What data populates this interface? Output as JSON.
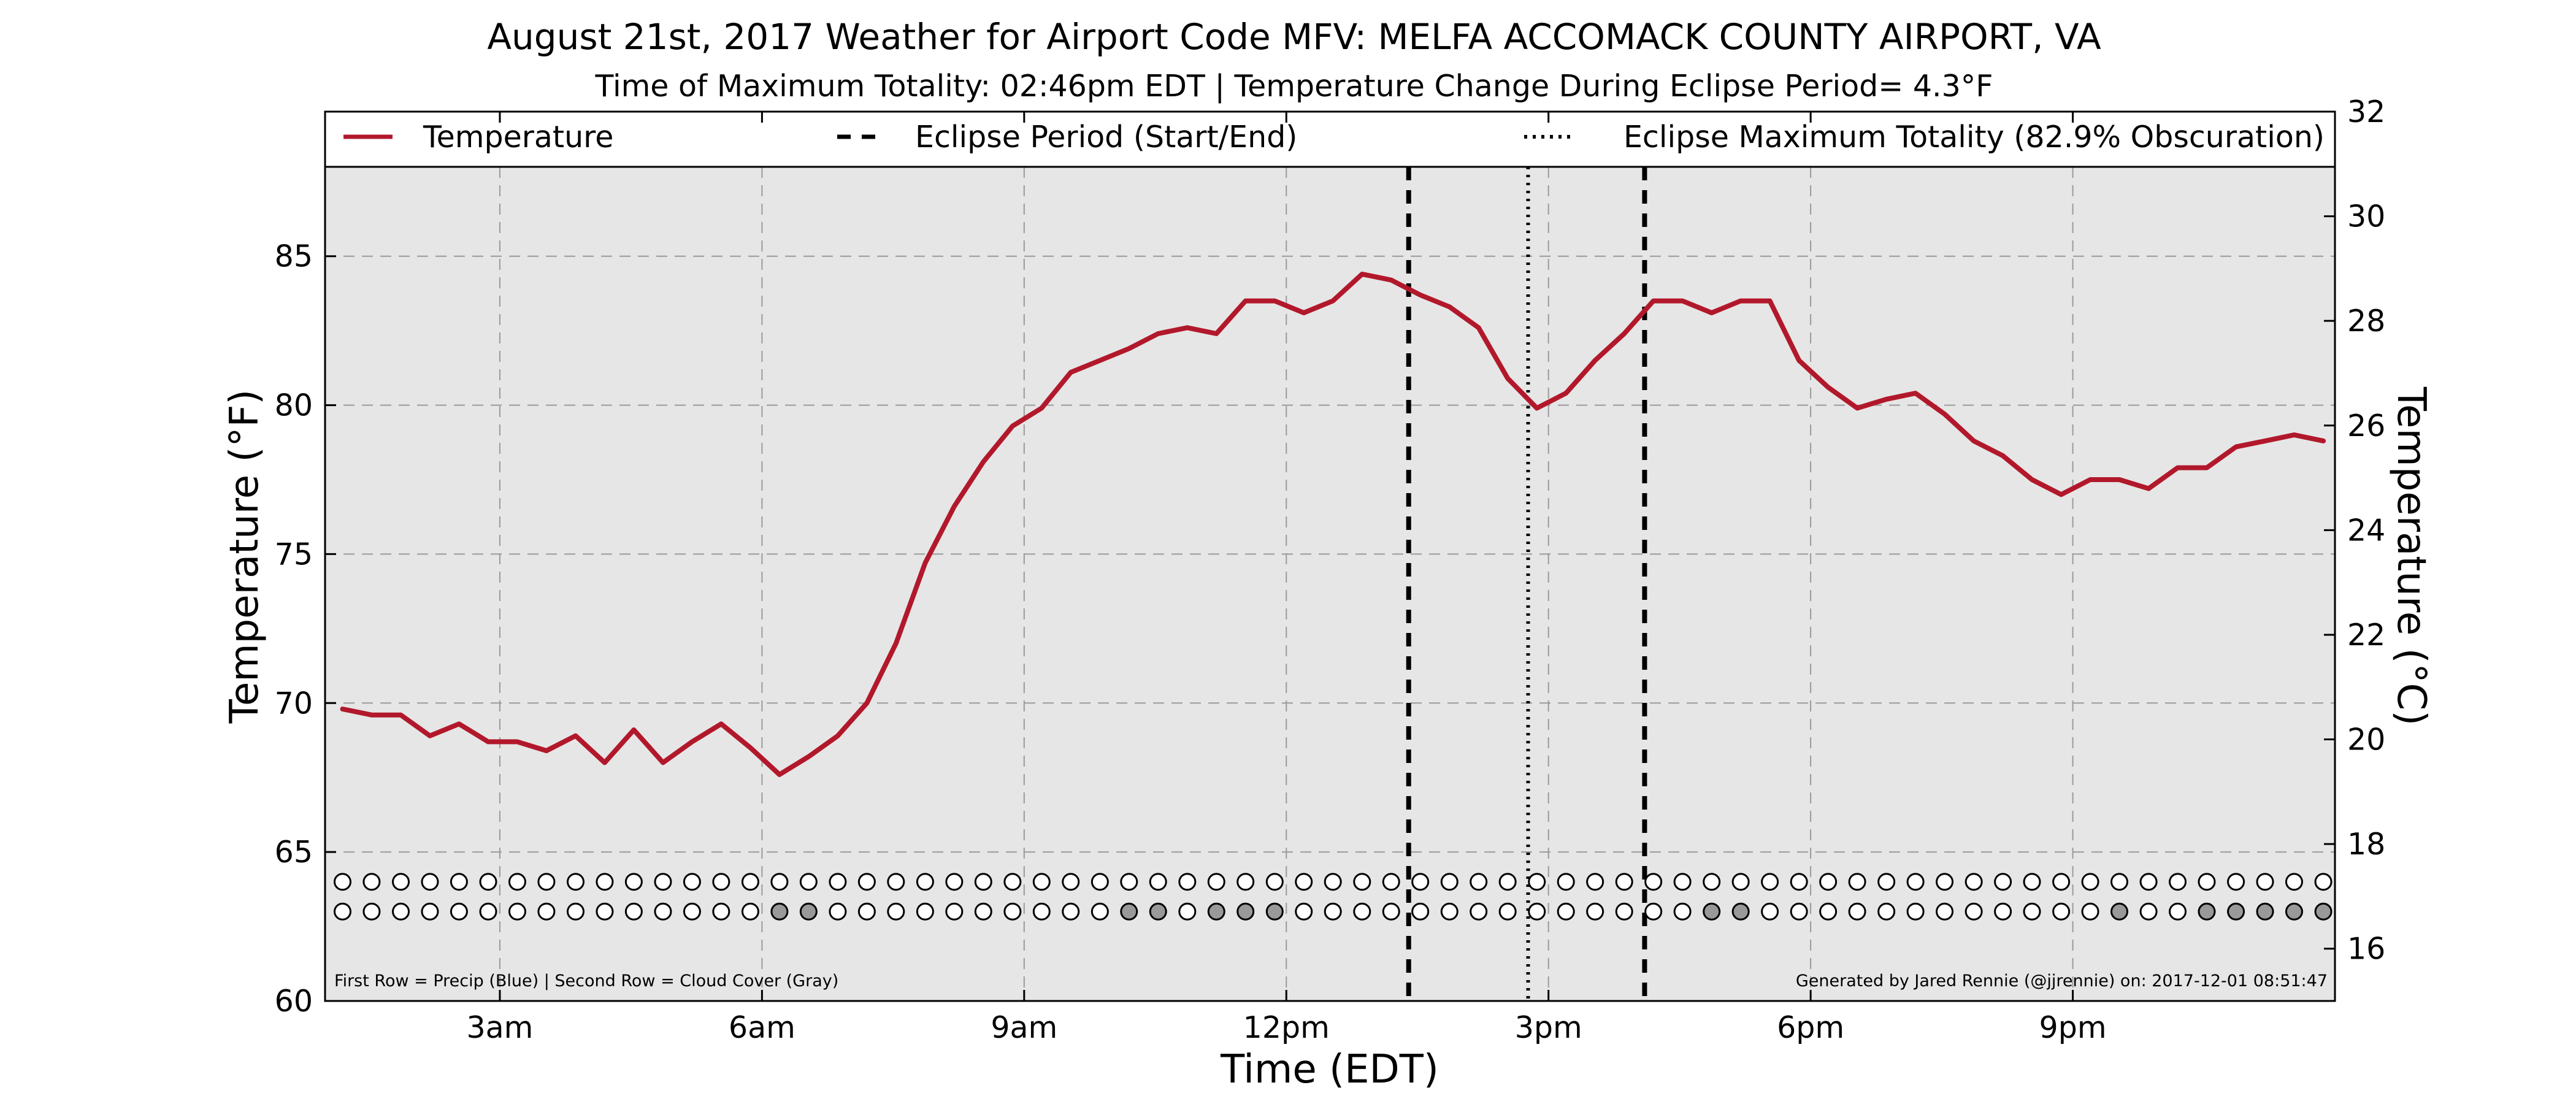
{
  "chart_data": {
    "type": "line",
    "title": "August 21st, 2017 Weather for Airport Code MFV: MELFA ACCOMACK COUNTY AIRPORT, VA",
    "subtitle": "Time of Maximum Totality: 02:46pm EDT | Temperature Change During Eclipse Period= 4.3°F",
    "xlabel": "Time (EDT)",
    "ylabel": "Temperature (°F)",
    "ylabel_right": "Temperature (°C)",
    "xlim": [
      1.0,
      24.0
    ],
    "ylim": [
      60,
      88
    ],
    "ylim_right": [
      15,
      32
    ],
    "x_ticks": [
      3,
      6,
      9,
      12,
      15,
      18,
      21
    ],
    "x_tick_labels": [
      "3am",
      "6am",
      "9am",
      "12pm",
      "3pm",
      "6pm",
      "9pm"
    ],
    "y_ticks": [
      60,
      65,
      70,
      75,
      80,
      85
    ],
    "y_tick_labels": [
      "60",
      "65",
      "70",
      "75",
      "80",
      "85"
    ],
    "y_right_ticks": [
      16,
      18,
      20,
      22,
      24,
      26,
      28,
      30,
      32
    ],
    "y_right_tick_labels": [
      "16",
      "18",
      "20",
      "22",
      "24",
      "26",
      "28",
      "30",
      "32"
    ],
    "grid": true,
    "legend_position": "top",
    "legend": [
      {
        "label": "Temperature",
        "style": "solid"
      },
      {
        "label": "Eclipse Period (Start/End)",
        "style": "dashed"
      },
      {
        "label": "Eclipse Maximum Totality (82.9% Obscuration)",
        "style": "dotted"
      }
    ],
    "eclipse_start": 13.4,
    "eclipse_end": 16.1,
    "eclipse_max": 14.767,
    "series": [
      {
        "name": "Temperature",
        "color": "#b2182b",
        "x": [
          1.2,
          1.533,
          1.867,
          2.2,
          2.533,
          2.867,
          3.2,
          3.533,
          3.867,
          4.2,
          4.533,
          4.867,
          5.2,
          5.533,
          5.867,
          6.2,
          6.533,
          6.867,
          7.2,
          7.533,
          7.867,
          8.2,
          8.533,
          8.867,
          9.2,
          9.533,
          9.867,
          10.2,
          10.533,
          10.867,
          11.2,
          11.533,
          11.867,
          12.2,
          12.533,
          12.867,
          13.2,
          13.533,
          13.867,
          14.2,
          14.533,
          14.867,
          15.2,
          15.533,
          15.867,
          16.2,
          16.533,
          16.867,
          17.2,
          17.533,
          17.867,
          18.2,
          18.533,
          18.867,
          19.2,
          19.533,
          19.867,
          20.2,
          20.533,
          20.867,
          21.2,
          21.533,
          21.867,
          22.2,
          22.533,
          22.867,
          23.2,
          23.533,
          23.867
        ],
        "values": [
          69.8,
          69.6,
          69.6,
          68.9,
          69.3,
          68.7,
          68.7,
          68.4,
          68.9,
          68.0,
          69.1,
          68.0,
          68.7,
          69.3,
          68.5,
          67.6,
          68.2,
          68.9,
          70.0,
          72.0,
          74.7,
          76.6,
          78.1,
          79.3,
          79.9,
          81.1,
          81.5,
          81.9,
          82.4,
          82.6,
          82.4,
          83.5,
          83.5,
          83.1,
          83.5,
          84.4,
          84.2,
          83.7,
          83.3,
          82.6,
          80.9,
          79.9,
          80.4,
          81.5,
          82.4,
          83.5,
          83.5,
          83.1,
          83.5,
          83.5,
          81.5,
          80.6,
          79.9,
          80.2,
          80.4,
          79.7,
          78.8,
          78.3,
          77.5,
          77.0,
          77.5,
          77.5,
          77.2,
          77.9,
          77.9,
          78.6,
          78.8,
          79.0,
          78.8
        ]
      }
    ],
    "precip_row": {
      "label": "Precip",
      "y": 64,
      "x": [
        1.2,
        1.533,
        1.867,
        2.2,
        2.533,
        2.867,
        3.2,
        3.533,
        3.867,
        4.2,
        4.533,
        4.867,
        5.2,
        5.533,
        5.867,
        6.2,
        6.533,
        6.867,
        7.2,
        7.533,
        7.867,
        8.2,
        8.533,
        8.867,
        9.2,
        9.533,
        9.867,
        10.2,
        10.533,
        10.867,
        11.2,
        11.533,
        11.867,
        12.2,
        12.533,
        12.867,
        13.2,
        13.533,
        13.867,
        14.2,
        14.533,
        14.867,
        15.2,
        15.533,
        15.867,
        16.2,
        16.533,
        16.867,
        17.2,
        17.533,
        17.867,
        18.2,
        18.533,
        18.867,
        19.2,
        19.533,
        19.867,
        20.2,
        20.533,
        20.867,
        21.2,
        21.533,
        21.867,
        22.2,
        22.533,
        22.867,
        23.2,
        23.533,
        23.867
      ],
      "filled": []
    },
    "cloud_row": {
      "label": "Cloud Cover",
      "y": 63,
      "x": [
        1.2,
        1.533,
        1.867,
        2.2,
        2.533,
        2.867,
        3.2,
        3.533,
        3.867,
        4.2,
        4.533,
        4.867,
        5.2,
        5.533,
        5.867,
        6.2,
        6.533,
        6.867,
        7.2,
        7.533,
        7.867,
        8.2,
        8.533,
        8.867,
        9.2,
        9.533,
        9.867,
        10.2,
        10.533,
        10.867,
        11.2,
        11.533,
        11.867,
        12.2,
        12.533,
        12.867,
        13.2,
        13.533,
        13.867,
        14.2,
        14.533,
        14.867,
        15.2,
        15.533,
        15.867,
        16.2,
        16.533,
        16.867,
        17.2,
        17.533,
        17.867,
        18.2,
        18.533,
        18.867,
        19.2,
        19.533,
        19.867,
        20.2,
        20.533,
        20.867,
        21.2,
        21.533,
        21.867,
        22.2,
        22.533,
        22.867,
        23.2,
        23.533,
        23.867
      ],
      "filled": [
        15,
        16,
        27,
        28,
        30,
        31,
        32,
        47,
        48,
        61,
        64,
        65,
        66,
        67,
        68
      ]
    },
    "annotations": {
      "bottom_left": "First Row = Precip (Blue) | Second Row = Cloud Cover (Gray)",
      "bottom_right": "Generated by Jared Rennie (@jjrennie) on: 2017-12-01 08:51:47"
    }
  },
  "colors": {
    "plot_background": "#e6e6e6",
    "temperature_line": "#b2182b",
    "cloud_filled_marker": "#999999",
    "empty_marker": "#ffffff",
    "grid": "#9a9a9a"
  }
}
